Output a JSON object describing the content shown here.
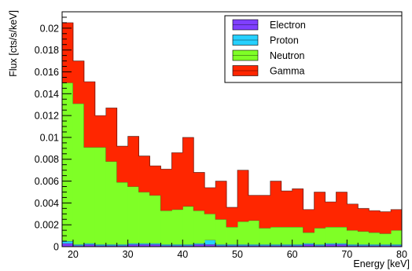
{
  "chart_data": {
    "type": "area",
    "title": "",
    "xlabel": "Energy [keV]",
    "ylabel": "Flux [cts/s/keV]",
    "xlim": [
      18,
      80
    ],
    "ylim": [
      0,
      0.0215
    ],
    "stacked": true,
    "histogram": true,
    "bin_width": 2,
    "x": [
      18,
      20,
      22,
      24,
      26,
      28,
      30,
      32,
      34,
      36,
      38,
      40,
      42,
      44,
      46,
      48,
      50,
      52,
      54,
      56,
      58,
      60,
      62,
      64,
      66,
      68,
      70,
      72,
      74,
      76,
      78
    ],
    "x_ticks": [
      20,
      30,
      40,
      50,
      60,
      70,
      80
    ],
    "y_ticks": [
      0,
      0.002,
      0.004,
      0.006,
      0.008,
      0.01,
      0.012,
      0.014,
      0.016,
      0.018,
      0.02
    ],
    "y_tick_labels": [
      "0",
      "0.002",
      "0.004",
      "0.006",
      "0.008",
      "0.01",
      "0.012",
      "0.014",
      "0.016",
      "0.018",
      "0.02"
    ],
    "series": [
      {
        "name": "Electron",
        "color": "#7f3fff",
        "values": [
          0.0003,
          0.0001,
          0.0002,
          0.0001,
          0.0001,
          0.0001,
          0.0002,
          0.0002,
          0.0002,
          0.0001,
          0.0001,
          0.0001,
          0.0002,
          0.0002,
          0.0001,
          0.0001,
          0.0001,
          0.0001,
          0.0001,
          0.0001,
          0.0001,
          0.0001,
          0.0002,
          0.0001,
          0.0002,
          0.0002,
          0.0001,
          0.0001,
          0.0001,
          0.0001,
          0.0001
        ]
      },
      {
        "name": "Proton",
        "color": "#26d0ff",
        "values": [
          0.0002,
          0.0001,
          0.0001,
          0.0001,
          0.0001,
          0.0001,
          0.0001,
          0.0001,
          0.0001,
          0.0001,
          0.0001,
          0.0001,
          0.0001,
          0.0004,
          0.0001,
          0.0001,
          0.0001,
          0.0001,
          0.0001,
          0.0001,
          0.0001,
          0.0001,
          0.0001,
          0.0001,
          0.0001,
          0.0001,
          0.0001,
          0.0001,
          0.0001,
          0.0001,
          0.0001
        ]
      },
      {
        "name": "Neutron",
        "color": "#7fff26",
        "values": [
          0.0145,
          0.0129,
          0.0088,
          0.0089,
          0.0076,
          0.0057,
          0.0052,
          0.0047,
          0.0044,
          0.0031,
          0.0032,
          0.0035,
          0.003,
          0.0024,
          0.0023,
          0.0016,
          0.0021,
          0.0022,
          0.0015,
          0.0016,
          0.0016,
          0.0016,
          0.001,
          0.0015,
          0.0015,
          0.0015,
          0.0013,
          0.0012,
          0.0011,
          0.001,
          0.0013
        ]
      },
      {
        "name": "Gamma",
        "color": "#ff2600",
        "values": [
          0.0055,
          0.0039,
          0.006,
          0.0029,
          0.0049,
          0.0033,
          0.0046,
          0.0033,
          0.0027,
          0.0038,
          0.0052,
          0.0063,
          0.0035,
          0.0024,
          0.0035,
          0.0018,
          0.0047,
          0.0023,
          0.003,
          0.0042,
          0.0033,
          0.0035,
          0.0021,
          0.0033,
          0.0023,
          0.0032,
          0.0024,
          0.0021,
          0.002,
          0.002,
          0.0019
        ]
      }
    ],
    "legend": {
      "placement": "top-right",
      "entries": [
        "Electron",
        "Proton",
        "Neutron",
        "Gamma"
      ]
    }
  }
}
